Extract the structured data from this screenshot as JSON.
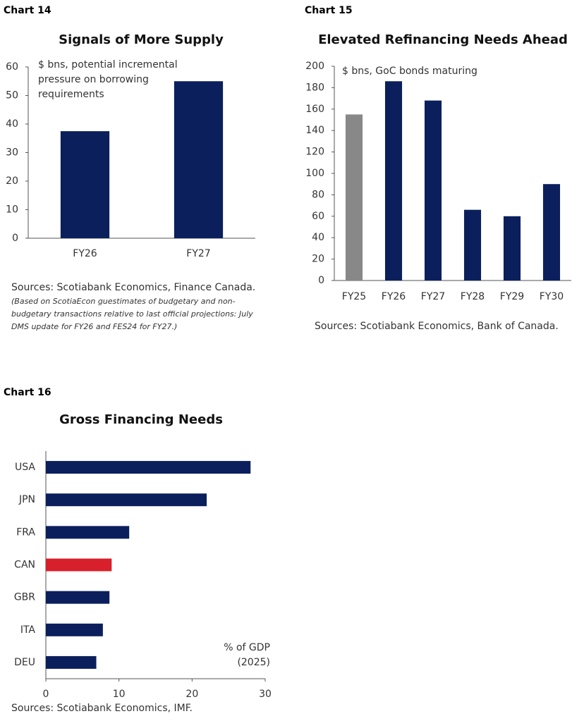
{
  "chart_data": [
    {
      "type": "bar",
      "label": "Chart 14",
      "title": "Signals of More Supply",
      "annotation": [
        "$ bns,  potential incremental",
        "pressure on borrowing",
        "requirements"
      ],
      "categories": [
        "FY26",
        "FY27"
      ],
      "values": [
        37.5,
        55
      ],
      "color": "#0b1f5c",
      "ylim": [
        0,
        60
      ],
      "yticks": [
        0,
        10,
        20,
        30,
        40,
        50,
        60
      ],
      "sources": "Sources: Scotiabank Economics, Finance Canada.",
      "note": [
        "(Based on ScotiaEcon guestimates of budgetary and non-",
        "budgetary transactions relative to last official projections: July",
        "DMS update for FY26 and FES24 for FY27.)"
      ]
    },
    {
      "type": "bar",
      "label": "Chart 15",
      "title": "Elevated Refinancing Needs Ahead",
      "annotation": [
        "$ bns,  GoC bonds maturing"
      ],
      "categories": [
        "FY25",
        "FY26",
        "FY27",
        "FY28",
        "FY29",
        "FY30"
      ],
      "values": [
        155,
        186,
        168,
        66,
        60,
        90
      ],
      "colors": [
        "#888888",
        "#0b1f5c",
        "#0b1f5c",
        "#0b1f5c",
        "#0b1f5c",
        "#0b1f5c"
      ],
      "ylim": [
        0,
        200
      ],
      "yticks": [
        0,
        20,
        40,
        60,
        80,
        100,
        120,
        140,
        160,
        180,
        200
      ],
      "sources": "Sources: Scotiabank Economics, Bank of Canada."
    },
    {
      "type": "barh",
      "label": "Chart 16",
      "title": "Gross Financing Needs",
      "annotation": [
        "% of GDP",
        "(2025)"
      ],
      "categories": [
        "USA",
        "JPN",
        "FRA",
        "CAN",
        "GBR",
        "ITA",
        "DEU"
      ],
      "values": [
        28,
        22,
        11.4,
        9,
        8.7,
        7.8,
        6.9
      ],
      "colors": [
        "#0b1f5c",
        "#0b1f5c",
        "#0b1f5c",
        "#d7202b",
        "#0b1f5c",
        "#0b1f5c",
        "#0b1f5c"
      ],
      "xlim": [
        0,
        30
      ],
      "xticks": [
        0,
        10,
        20,
        30
      ],
      "sources": "Sources: Scotiabank Economics, IMF."
    }
  ]
}
